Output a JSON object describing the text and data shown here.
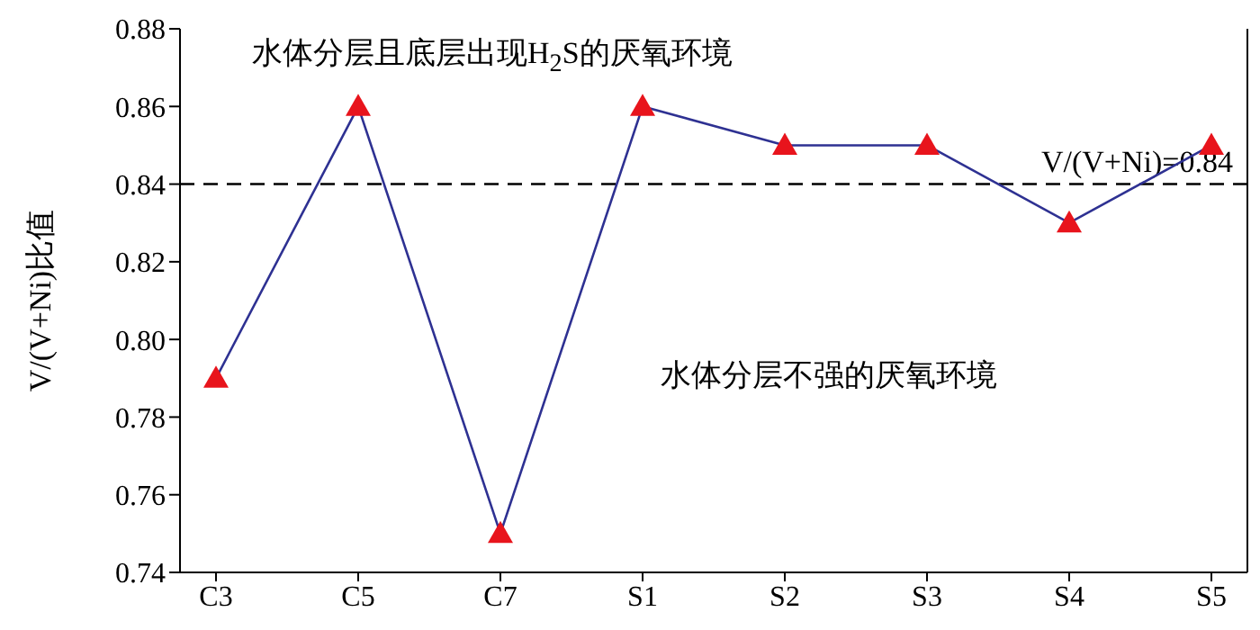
{
  "chart_data": {
    "type": "line",
    "ylabel": "V/(V+Ni)比值",
    "categories": [
      "C3",
      "C5",
      "C7",
      "S1",
      "S2",
      "S3",
      "S4",
      "S5"
    ],
    "series": [
      {
        "color": "#2e3192",
        "values": [
          0.79,
          0.86,
          0.75,
          0.86,
          0.85,
          0.85,
          0.83,
          0.85
        ]
      }
    ],
    "marker": "triangle",
    "line_style": "solid",
    "ylim": [
      0.74,
      0.88
    ],
    "yticks": [
      {
        "value": 0.74,
        "label": "0.74"
      },
      {
        "value": 0.76,
        "label": "0.76"
      },
      {
        "value": 0.78,
        "label": "0.78"
      },
      {
        "value": 0.8,
        "label": "0.80"
      },
      {
        "value": 0.82,
        "label": "0.82"
      },
      {
        "value": 0.84,
        "label": "0.84"
      },
      {
        "value": 0.86,
        "label": "0.86"
      },
      {
        "value": 0.88,
        "label": "0.88"
      }
    ],
    "ref_lines": [
      {
        "axis": "y",
        "value": 0.84,
        "label": "V/(V+Ni)=0.84",
        "color": "#000000",
        "line_style": "dashed"
      }
    ],
    "annotations": [
      "水体分层且底层出现H$_{2}$S的厌氧环境",
      "水体分层不强的厌氧环境"
    ]
  }
}
